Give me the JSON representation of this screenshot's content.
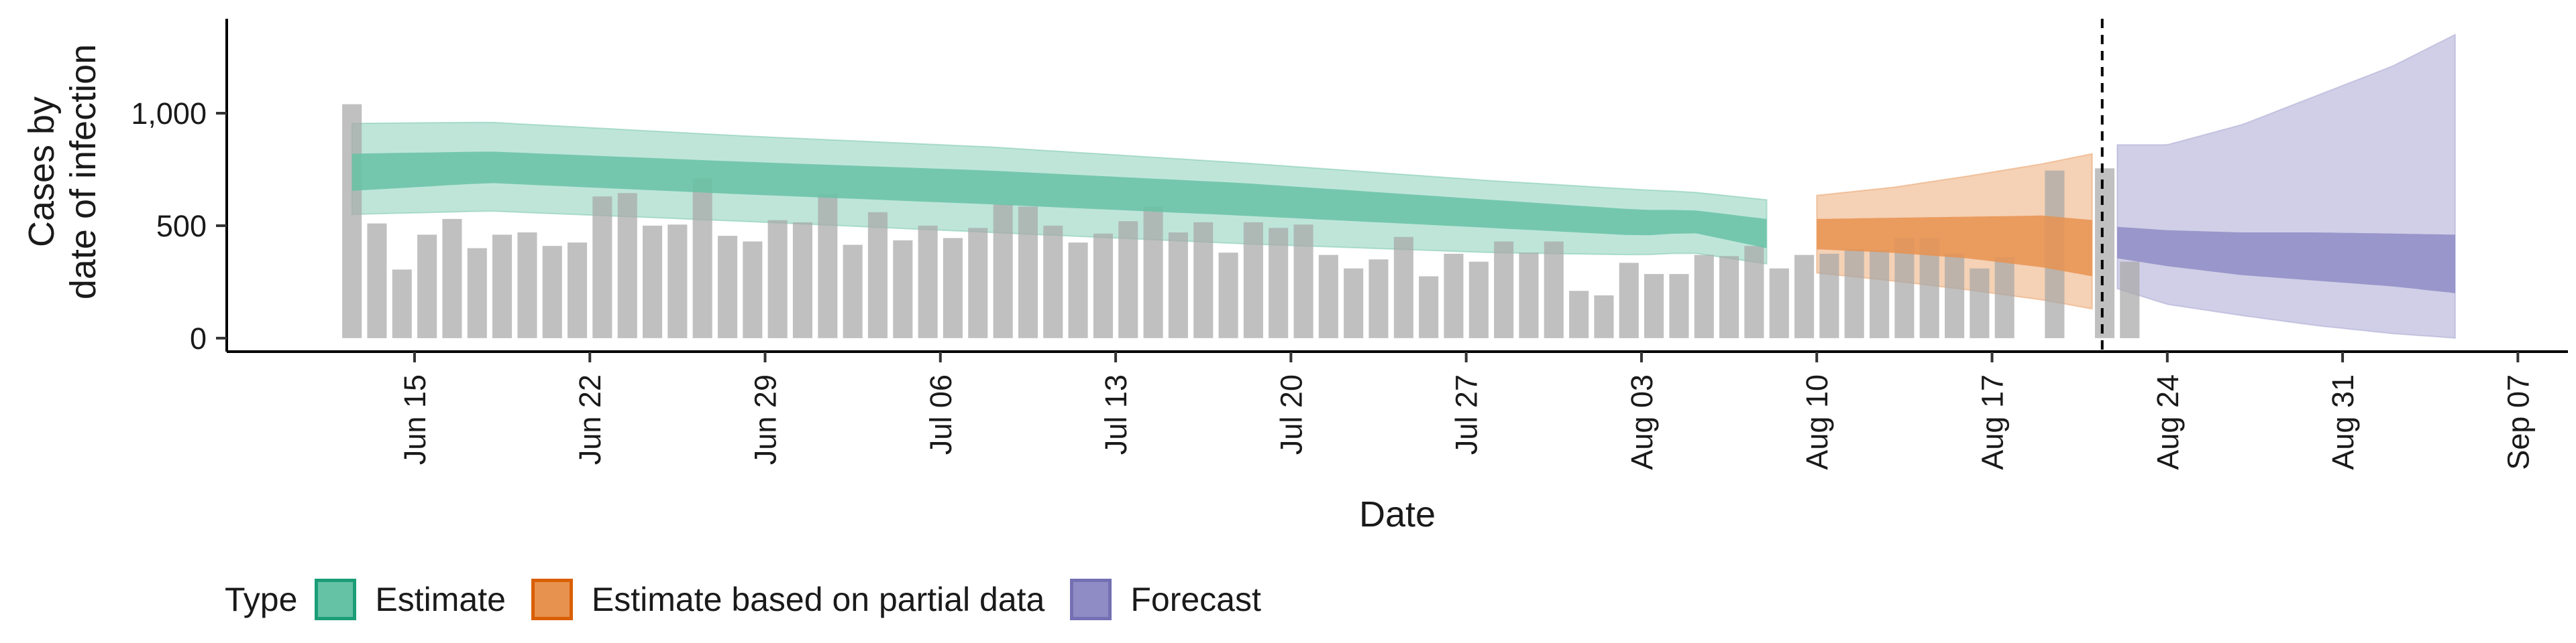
{
  "chart_data": {
    "type": "bar+ribbon",
    "ylabel_lines": [
      "Cases by",
      "date of infection"
    ],
    "xlabel": "Date",
    "ylim": [
      -60,
      1420
    ],
    "yticks": [
      0,
      500,
      1000
    ],
    "ytick_labels": [
      "0",
      "500",
      "1,000"
    ],
    "x_start": "2020-06-08",
    "xlim_days": [
      -0.5,
      93
    ],
    "xticks": [
      {
        "day": 7,
        "label": "Jun 15"
      },
      {
        "day": 14,
        "label": "Jun 22"
      },
      {
        "day": 21,
        "label": "Jun 29"
      },
      {
        "day": 28,
        "label": "Jul 06"
      },
      {
        "day": 35,
        "label": "Jul 13"
      },
      {
        "day": 42,
        "label": "Jul 20"
      },
      {
        "day": 49,
        "label": "Jul 27"
      },
      {
        "day": 56,
        "label": "Aug 03"
      },
      {
        "day": 63,
        "label": "Aug 10"
      },
      {
        "day": 70,
        "label": "Aug 17"
      },
      {
        "day": 77,
        "label": "Aug 24"
      },
      {
        "day": 84,
        "label": "Aug 31"
      },
      {
        "day": 91,
        "label": "Sep 07"
      }
    ],
    "bars_first_day": 4.5,
    "bars": [
      1040,
      510,
      305,
      460,
      530,
      400,
      460,
      470,
      410,
      425,
      630,
      645,
      500,
      505,
      710,
      455,
      430,
      525,
      515,
      640,
      415,
      560,
      435,
      500,
      445,
      490,
      595,
      585,
      500,
      425,
      465,
      520,
      585,
      470,
      515,
      380,
      515,
      490,
      505,
      370,
      310,
      350,
      450,
      275,
      375,
      340,
      430,
      380,
      430,
      210,
      190,
      335,
      285,
      285,
      370,
      365,
      410,
      310,
      370,
      375,
      395,
      390,
      445,
      445,
      375,
      310,
      360,
      0,
      745,
      0,
      755,
      340
    ],
    "vline_day": 74.4,
    "vline_style": "dashed",
    "series": [
      {
        "name": "Estimate",
        "color": "#1b9e77",
        "fill": "#66c2a5",
        "start_day": 4.5,
        "end_day": 61.0,
        "x": [
          4.5,
          10,
          20,
          30,
          40,
          50,
          56,
          58,
          61
        ],
        "lower90": [
          550,
          565,
          520,
          470,
          420,
          380,
          370,
          380,
          330
        ],
        "upper90": [
          955,
          960,
          900,
          850,
          780,
          700,
          660,
          650,
          615
        ],
        "lower50": [
          655,
          690,
          640,
          595,
          545,
          490,
          455,
          470,
          400
        ],
        "upper50": [
          820,
          830,
          785,
          745,
          690,
          615,
          570,
          570,
          530
        ]
      },
      {
        "name": "Estimate based on partial data",
        "color": "#d95f02",
        "fill": "#e8924f",
        "start_day": 63.0,
        "end_day": 74.0,
        "x": [
          63,
          66,
          69,
          72,
          74
        ],
        "lower90": [
          290,
          255,
          215,
          170,
          130
        ],
        "upper90": [
          635,
          670,
          720,
          775,
          820
        ],
        "lower50": [
          395,
          380,
          355,
          315,
          275
        ],
        "upper50": [
          530,
          535,
          540,
          545,
          525
        ]
      },
      {
        "name": "Forecast",
        "color": "#7570b3",
        "fill": "#8f8cc5",
        "start_day": 75.0,
        "end_day": 88.5,
        "x": [
          75,
          77,
          80,
          83,
          86,
          88.5
        ],
        "lower90": [
          220,
          150,
          100,
          55,
          20,
          0
        ],
        "upper90": [
          860,
          860,
          950,
          1080,
          1210,
          1350
        ],
        "lower50": [
          355,
          320,
          280,
          255,
          230,
          200
        ],
        "upper50": [
          495,
          480,
          470,
          470,
          465,
          460
        ]
      }
    ],
    "bar_color": "#a8a8a8",
    "legend_title": "Type",
    "legend_position": "bottom"
  }
}
